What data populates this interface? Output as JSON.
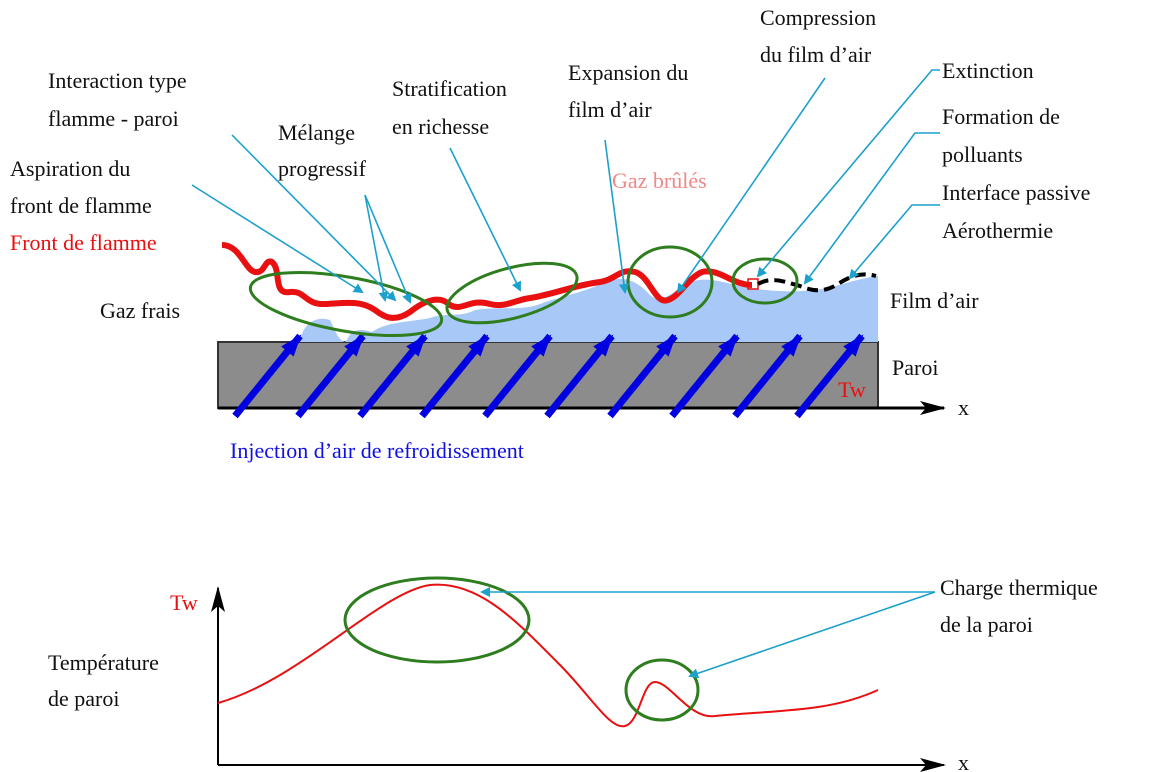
{
  "labels": {
    "compression": [
      "Compression",
      "du film d’air"
    ],
    "extinction": [
      "Extinction"
    ],
    "formation": [
      "Formation de",
      "polluants"
    ],
    "interface": [
      "Interface passive",
      "Aérothermie"
    ],
    "expansion": [
      "Expansion du",
      "film d’air"
    ],
    "stratification": [
      "Stratification",
      "en richesse"
    ],
    "interaction": [
      "Interaction type",
      "flamme - paroi"
    ],
    "melange": [
      "Mélange",
      "progressif"
    ],
    "aspiration": [
      "Aspiration du",
      "front de flamme"
    ],
    "front": [
      "Front de flamme"
    ],
    "gaz_brules": [
      "Gaz brûlés"
    ],
    "gaz_frais": [
      "Gaz frais"
    ],
    "film": [
      "Film d’air"
    ],
    "paroi": [
      "Paroi"
    ],
    "tw_top": [
      "Tw"
    ],
    "x_top": [
      "x"
    ],
    "injection": [
      "Injection d’air de refroidissement"
    ],
    "tw_bottom": [
      "Tw"
    ],
    "temperature": [
      "Température",
      "de paroi"
    ],
    "charge": [
      "Charge thermique",
      "de la paroi"
    ],
    "x_bottom": [
      "x"
    ]
  }
}
